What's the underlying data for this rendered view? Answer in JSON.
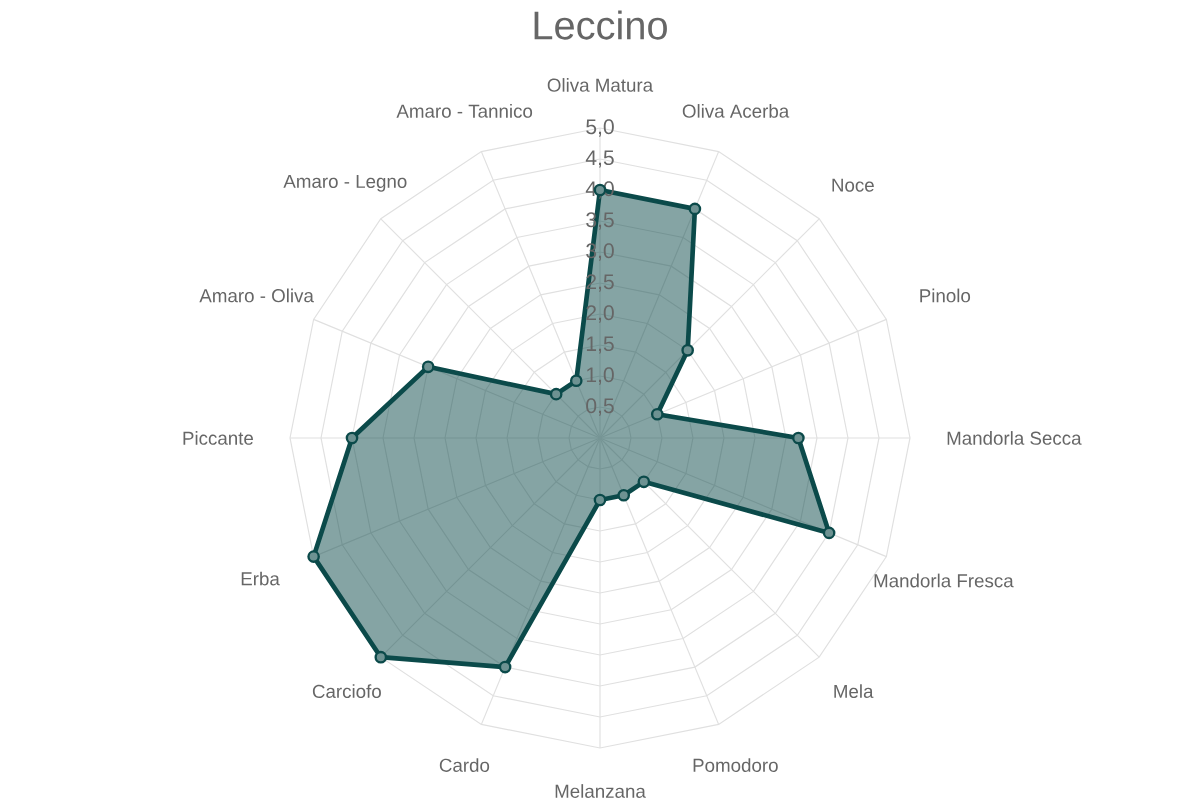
{
  "chart_data": {
    "type": "radar",
    "title": "Leccino",
    "categories": [
      "Oliva Matura",
      "Oliva Acerba",
      "Noce",
      "Pinolo",
      "Mandorla Secca",
      "Mandorla Fresca",
      "Mela",
      "Pomodoro",
      "Melanzana",
      "Cardo",
      "Carciofo",
      "Erba",
      "Piccante",
      "Amaro - Oliva",
      "Amaro - Legno",
      "Amaro - Tannico"
    ],
    "series": [
      {
        "color": "#0b4a4a",
        "values": [
          4.0,
          4.0,
          2.0,
          1.0,
          3.2,
          4.0,
          1.0,
          1.0,
          1.0,
          4.0,
          5.0,
          5.0,
          4.0,
          3.0,
          1.0,
          1.0
        ]
      }
    ],
    "ylim": [
      0,
      5
    ],
    "yticks": [
      {
        "value": 0.5,
        "label": "0,5"
      },
      {
        "value": 1,
        "label": "1,0"
      },
      {
        "value": 1.5,
        "label": "1,5"
      },
      {
        "value": 2,
        "label": "2,0"
      },
      {
        "value": 2.5,
        "label": "2,5"
      },
      {
        "value": 3,
        "label": "3,0"
      },
      {
        "value": 3.5,
        "label": "3,5"
      },
      {
        "value": 4,
        "label": "4,0"
      },
      {
        "value": 4.5,
        "label": "4,5"
      },
      {
        "value": 5,
        "label": "5,0"
      }
    ],
    "grid": true,
    "marker": "circle"
  }
}
